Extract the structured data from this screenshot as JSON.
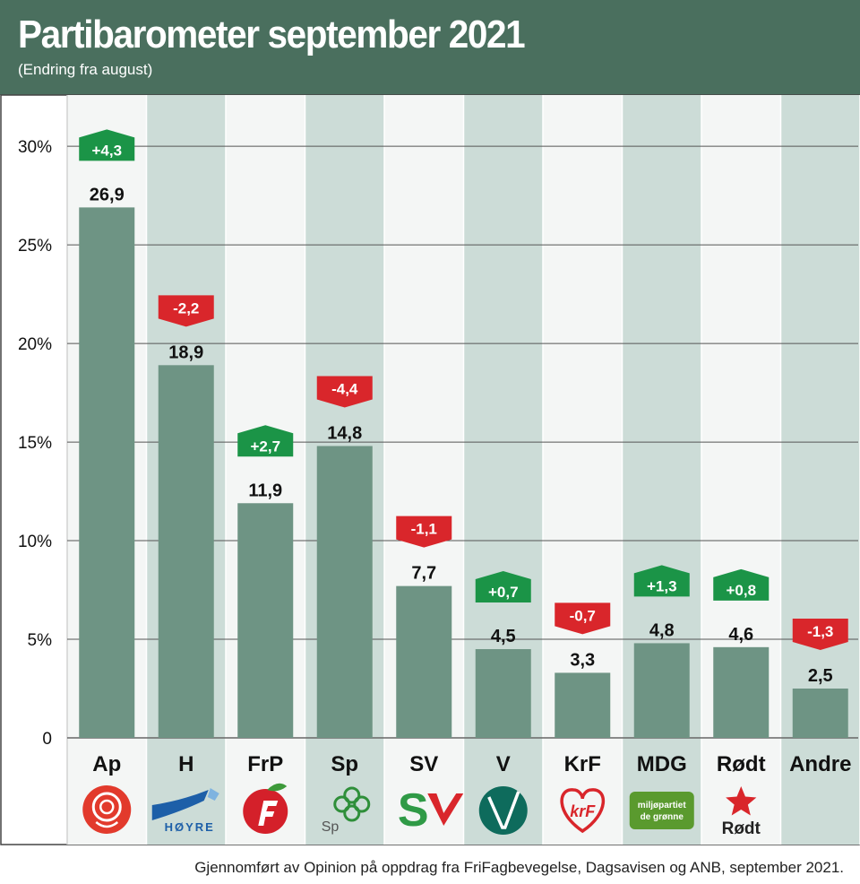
{
  "header": {
    "title": "Partibarometer september 2021",
    "subtitle": "(Endring fra august)"
  },
  "footer": {
    "source": "Gjennomført av Opinion på oppdrag fra FriFagbevegelse, Dagsavisen og ANB, september 2021."
  },
  "colors": {
    "header_bg": "#4a6f5e",
    "bar": "#6e9484",
    "column_alt": "#ccdcd7",
    "positive": "#1b9447",
    "negative": "#d9262b"
  },
  "chart_data": {
    "type": "bar",
    "categories": [
      "Ap",
      "H",
      "FrP",
      "Sp",
      "SV",
      "V",
      "KrF",
      "MDG",
      "Rødt",
      "Andre"
    ],
    "values": [
      26.9,
      18.9,
      11.9,
      14.8,
      7.7,
      4.5,
      3.3,
      4.8,
      4.6,
      2.5
    ],
    "value_labels": [
      "26,9",
      "18,9",
      "11,9",
      "14,8",
      "7,7",
      "4,5",
      "3,3",
      "4,8",
      "4,6",
      "2,5"
    ],
    "changes": [
      4.3,
      -2.2,
      2.7,
      -4.4,
      -1.1,
      0.7,
      -0.7,
      1.3,
      0.8,
      -1.3
    ],
    "change_labels": [
      "+4,3",
      "-2,2",
      "+2,7",
      "-4,4",
      "-1,1",
      "+0,7",
      "-0,7",
      "+1,3",
      "+0,8",
      "-1,3"
    ],
    "yticks": [
      0,
      5,
      10,
      15,
      20,
      25,
      30
    ],
    "ytick_labels": [
      "0",
      "5%",
      "10%",
      "15%",
      "20%",
      "25%",
      "30%"
    ],
    "ylim": [
      0,
      32.6
    ],
    "grid": true,
    "logos": [
      {
        "icon": "ap-rose-icon",
        "text": ""
      },
      {
        "icon": "hoyre-wave-icon",
        "text": "HØYRE"
      },
      {
        "icon": "frp-apple-icon",
        "text": ""
      },
      {
        "icon": "sp-clover-icon",
        "text": "Sp"
      },
      {
        "icon": "sv-logo-icon",
        "text": "S"
      },
      {
        "icon": "venstre-v-icon",
        "text": ""
      },
      {
        "icon": "krf-heart-icon",
        "text": "krF"
      },
      {
        "icon": "mdg-leaf-icon",
        "text": "miljøpartiet de grønne"
      },
      {
        "icon": "rodt-star-icon",
        "text": "Rødt"
      },
      {
        "icon": "",
        "text": ""
      }
    ]
  }
}
